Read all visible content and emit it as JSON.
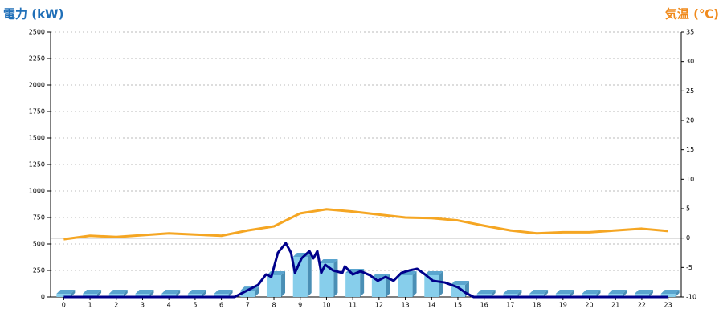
{
  "chart_data": {
    "type": "combo",
    "y_label": "電力 (kW)",
    "y2_label": "気温 (℃)",
    "xlim": [
      -0.5,
      23.5
    ],
    "xticks": [
      0,
      1,
      2,
      3,
      4,
      5,
      6,
      7,
      8,
      9,
      10,
      11,
      12,
      13,
      14,
      15,
      16,
      17,
      18,
      19,
      20,
      21,
      22,
      23
    ],
    "ylim": [
      0,
      2500
    ],
    "yticks": [
      0,
      250,
      500,
      750,
      1000,
      1250,
      1500,
      1750,
      2000,
      2250,
      2500
    ],
    "y2lim": [
      -10,
      35
    ],
    "y2ticks": [
      -10,
      -5,
      0,
      5,
      10,
      15,
      20,
      25,
      30,
      35
    ],
    "grid": true,
    "series": [
      {
        "type": "bar",
        "color": "#87ceeb",
        "x": [
          0,
          1,
          2,
          3,
          4,
          5,
          6,
          7,
          8,
          9,
          10,
          11,
          12,
          13,
          14,
          15,
          16,
          17,
          18,
          19,
          20,
          21,
          22,
          23
        ],
        "values": [
          30,
          30,
          30,
          30,
          30,
          30,
          30,
          60,
          205,
          379,
          318,
          227,
          182,
          205,
          205,
          114,
          30,
          30,
          30,
          30,
          30,
          30,
          30,
          30
        ]
      },
      {
        "type": "line",
        "color": "#00008b",
        "x": [
          0,
          6.5,
          7.4,
          7.7,
          7.9,
          8.15,
          8.45,
          8.65,
          8.8,
          9.05,
          9.35,
          9.5,
          9.65,
          9.8,
          9.95,
          10.25,
          10.6,
          10.7,
          11.0,
          11.3,
          11.65,
          11.95,
          12.25,
          12.55,
          12.85,
          13.15,
          13.45,
          13.75,
          14.05,
          14.5,
          15.0,
          15.3,
          15.6,
          23
        ],
        "values": [
          0,
          0,
          114,
          212,
          189,
          417,
          508,
          417,
          227,
          364,
          432,
          364,
          432,
          227,
          303,
          250,
          227,
          288,
          212,
          242,
          205,
          152,
          189,
          152,
          227,
          250,
          265,
          212,
          152,
          136,
          91,
          38,
          0,
          0
        ]
      },
      {
        "type": "line",
        "axis": "y2",
        "color": "#f5a623",
        "x": [
          0,
          1,
          2,
          3,
          4,
          5,
          6,
          7,
          8,
          9,
          10,
          11,
          12,
          13,
          14,
          15,
          16,
          17,
          18,
          19,
          20,
          21,
          22,
          23
        ],
        "values": [
          -0.2,
          0.4,
          0.2,
          0.5,
          0.8,
          0.6,
          0.4,
          1.3,
          2.0,
          4.2,
          4.9,
          4.5,
          4.0,
          3.5,
          3.4,
          3.0,
          2.1,
          1.3,
          0.8,
          1.0,
          1.0,
          1.3,
          1.6,
          1.2
        ]
      }
    ]
  }
}
